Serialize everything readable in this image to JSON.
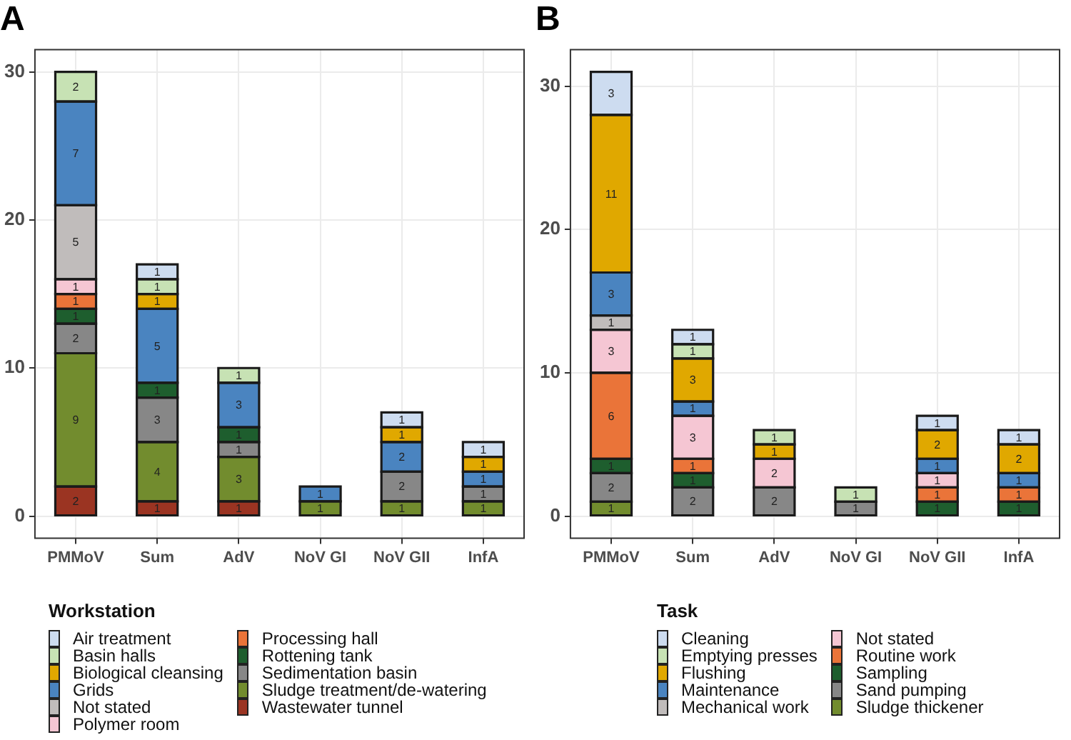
{
  "chart_data": [
    {
      "type": "bar",
      "title": "A",
      "legend_title": "Workstation",
      "stacked": true,
      "data_labels": true,
      "grid": true,
      "legend": "bottom",
      "categories": [
        "PMMoV",
        "Sum",
        "AdV",
        "NoV GI",
        "NoV GII",
        "InfA"
      ],
      "ylim": [
        -1.5,
        31.5
      ],
      "yticks": [
        0,
        10,
        20,
        30
      ],
      "series": [
        {
          "name": "Wastewater tunnel",
          "color": "#9b3422",
          "values": [
            2,
            1,
            1,
            null,
            null,
            null
          ]
        },
        {
          "name": "Sludge treatment/de-watering",
          "color": "#728c2e",
          "values": [
            9,
            4,
            3,
            1,
            1,
            1
          ]
        },
        {
          "name": "Sedimentation basin",
          "color": "#878787",
          "values": [
            2,
            3,
            1,
            null,
            2,
            1
          ]
        },
        {
          "name": "Rottening tank",
          "color": "#1e5e2e",
          "values": [
            1,
            1,
            1,
            null,
            null,
            null
          ]
        },
        {
          "name": "Processing hall",
          "color": "#ea7439",
          "values": [
            1,
            null,
            null,
            null,
            null,
            null
          ]
        },
        {
          "name": "Polymer room",
          "color": "#f5c6d3",
          "values": [
            1,
            null,
            null,
            null,
            null,
            null
          ]
        },
        {
          "name": "Not stated",
          "color": "#c0bcbb",
          "values": [
            5,
            null,
            null,
            null,
            null,
            null
          ]
        },
        {
          "name": "Grids",
          "color": "#4a84c0",
          "values": [
            7,
            5,
            3,
            1,
            2,
            1
          ]
        },
        {
          "name": "Biological cleansing",
          "color": "#e0a800",
          "values": [
            null,
            1,
            null,
            null,
            1,
            1
          ]
        },
        {
          "name": "Basin halls",
          "color": "#c7e2b4",
          "values": [
            2,
            1,
            1,
            null,
            null,
            null
          ]
        },
        {
          "name": "Air treatment",
          "color": "#cddcf0",
          "values": [
            null,
            1,
            null,
            null,
            1,
            1
          ]
        }
      ]
    },
    {
      "type": "bar",
      "title": "B",
      "legend_title": "Task",
      "stacked": true,
      "data_labels": true,
      "grid": true,
      "legend": "bottom",
      "categories": [
        "PMMoV",
        "Sum",
        "AdV",
        "NoV GI",
        "NoV GII",
        "InfA"
      ],
      "ylim": [
        -1.55,
        32.55
      ],
      "yticks": [
        0,
        10,
        20,
        30
      ],
      "series": [
        {
          "name": "Sludge thickener",
          "color": "#728c2e",
          "values": [
            1,
            null,
            null,
            null,
            null,
            null
          ]
        },
        {
          "name": "Sand pumping",
          "color": "#878787",
          "values": [
            2,
            2,
            2,
            1,
            null,
            null
          ]
        },
        {
          "name": "Sampling",
          "color": "#1e5e2e",
          "values": [
            1,
            1,
            null,
            null,
            1,
            1
          ]
        },
        {
          "name": "Routine work",
          "color": "#ea7439",
          "values": [
            6,
            1,
            null,
            null,
            1,
            1
          ]
        },
        {
          "name": "Not stated",
          "color": "#f5c6d3",
          "values": [
            3,
            3,
            2,
            null,
            1,
            null
          ]
        },
        {
          "name": "Mechanical work",
          "color": "#c0bcbb",
          "values": [
            1,
            null,
            null,
            null,
            null,
            null
          ]
        },
        {
          "name": "Maintenance",
          "color": "#4a84c0",
          "values": [
            3,
            1,
            null,
            null,
            1,
            1
          ]
        },
        {
          "name": "Flushing",
          "color": "#e0a800",
          "values": [
            11,
            3,
            1,
            null,
            2,
            2
          ]
        },
        {
          "name": "Emptying presses",
          "color": "#c7e2b4",
          "values": [
            null,
            1,
            1,
            1,
            null,
            null
          ]
        },
        {
          "name": "Cleaning",
          "color": "#cddcf0",
          "values": [
            3,
            1,
            null,
            null,
            1,
            1
          ]
        }
      ]
    }
  ]
}
